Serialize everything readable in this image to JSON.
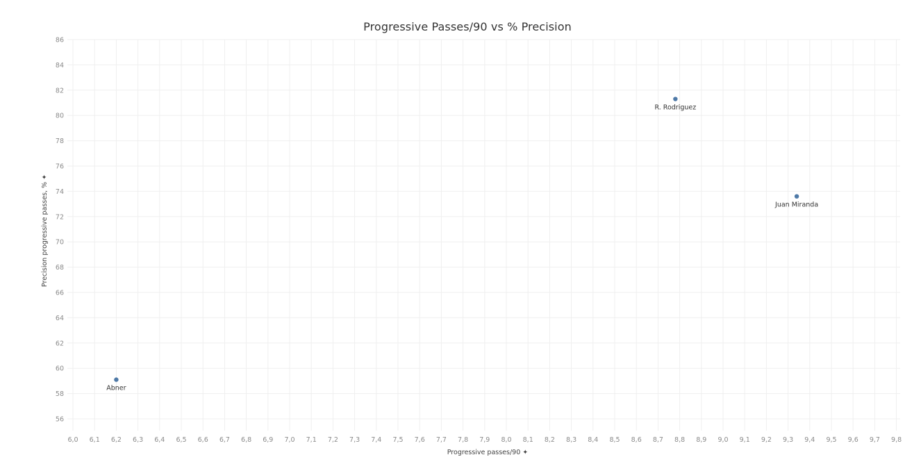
{
  "chart_data": {
    "type": "scatter",
    "title": "Progressive Passes/90 vs % Precision",
    "xlabel": "Progressive passes/90 ✦",
    "ylabel": "Precision progressive passes, % ✦",
    "xlim": [
      6.0,
      9.8
    ],
    "ylim": [
      55,
      86
    ],
    "x_ticks": [
      "6,0",
      "6,1",
      "6,2",
      "6,3",
      "6,4",
      "6,5",
      "6,6",
      "6,7",
      "6,8",
      "6,9",
      "7,0",
      "7,1",
      "7,2",
      "7,3",
      "7,4",
      "7,5",
      "7,6",
      "7,7",
      "7,8",
      "7,9",
      "8,0",
      "8,1",
      "8,2",
      "8,3",
      "8,4",
      "8,5",
      "8,6",
      "8,7",
      "8,8",
      "8,9",
      "9,0",
      "9,1",
      "9,2",
      "9,3",
      "9,4",
      "9,5",
      "9,6",
      "9,7",
      "9,8"
    ],
    "y_ticks": [
      "56",
      "58",
      "60",
      "62",
      "64",
      "66",
      "68",
      "70",
      "72",
      "74",
      "76",
      "78",
      "80",
      "82",
      "84",
      "86"
    ],
    "grid": true,
    "marker_color": "#4e79a7",
    "points": [
      {
        "label": "R. Rodriguez",
        "x": 8.78,
        "y": 81.3
      },
      {
        "label": "Juan Miranda",
        "x": 9.34,
        "y": 73.6
      },
      {
        "label": "Abner",
        "x": 6.2,
        "y": 59.1
      }
    ]
  }
}
